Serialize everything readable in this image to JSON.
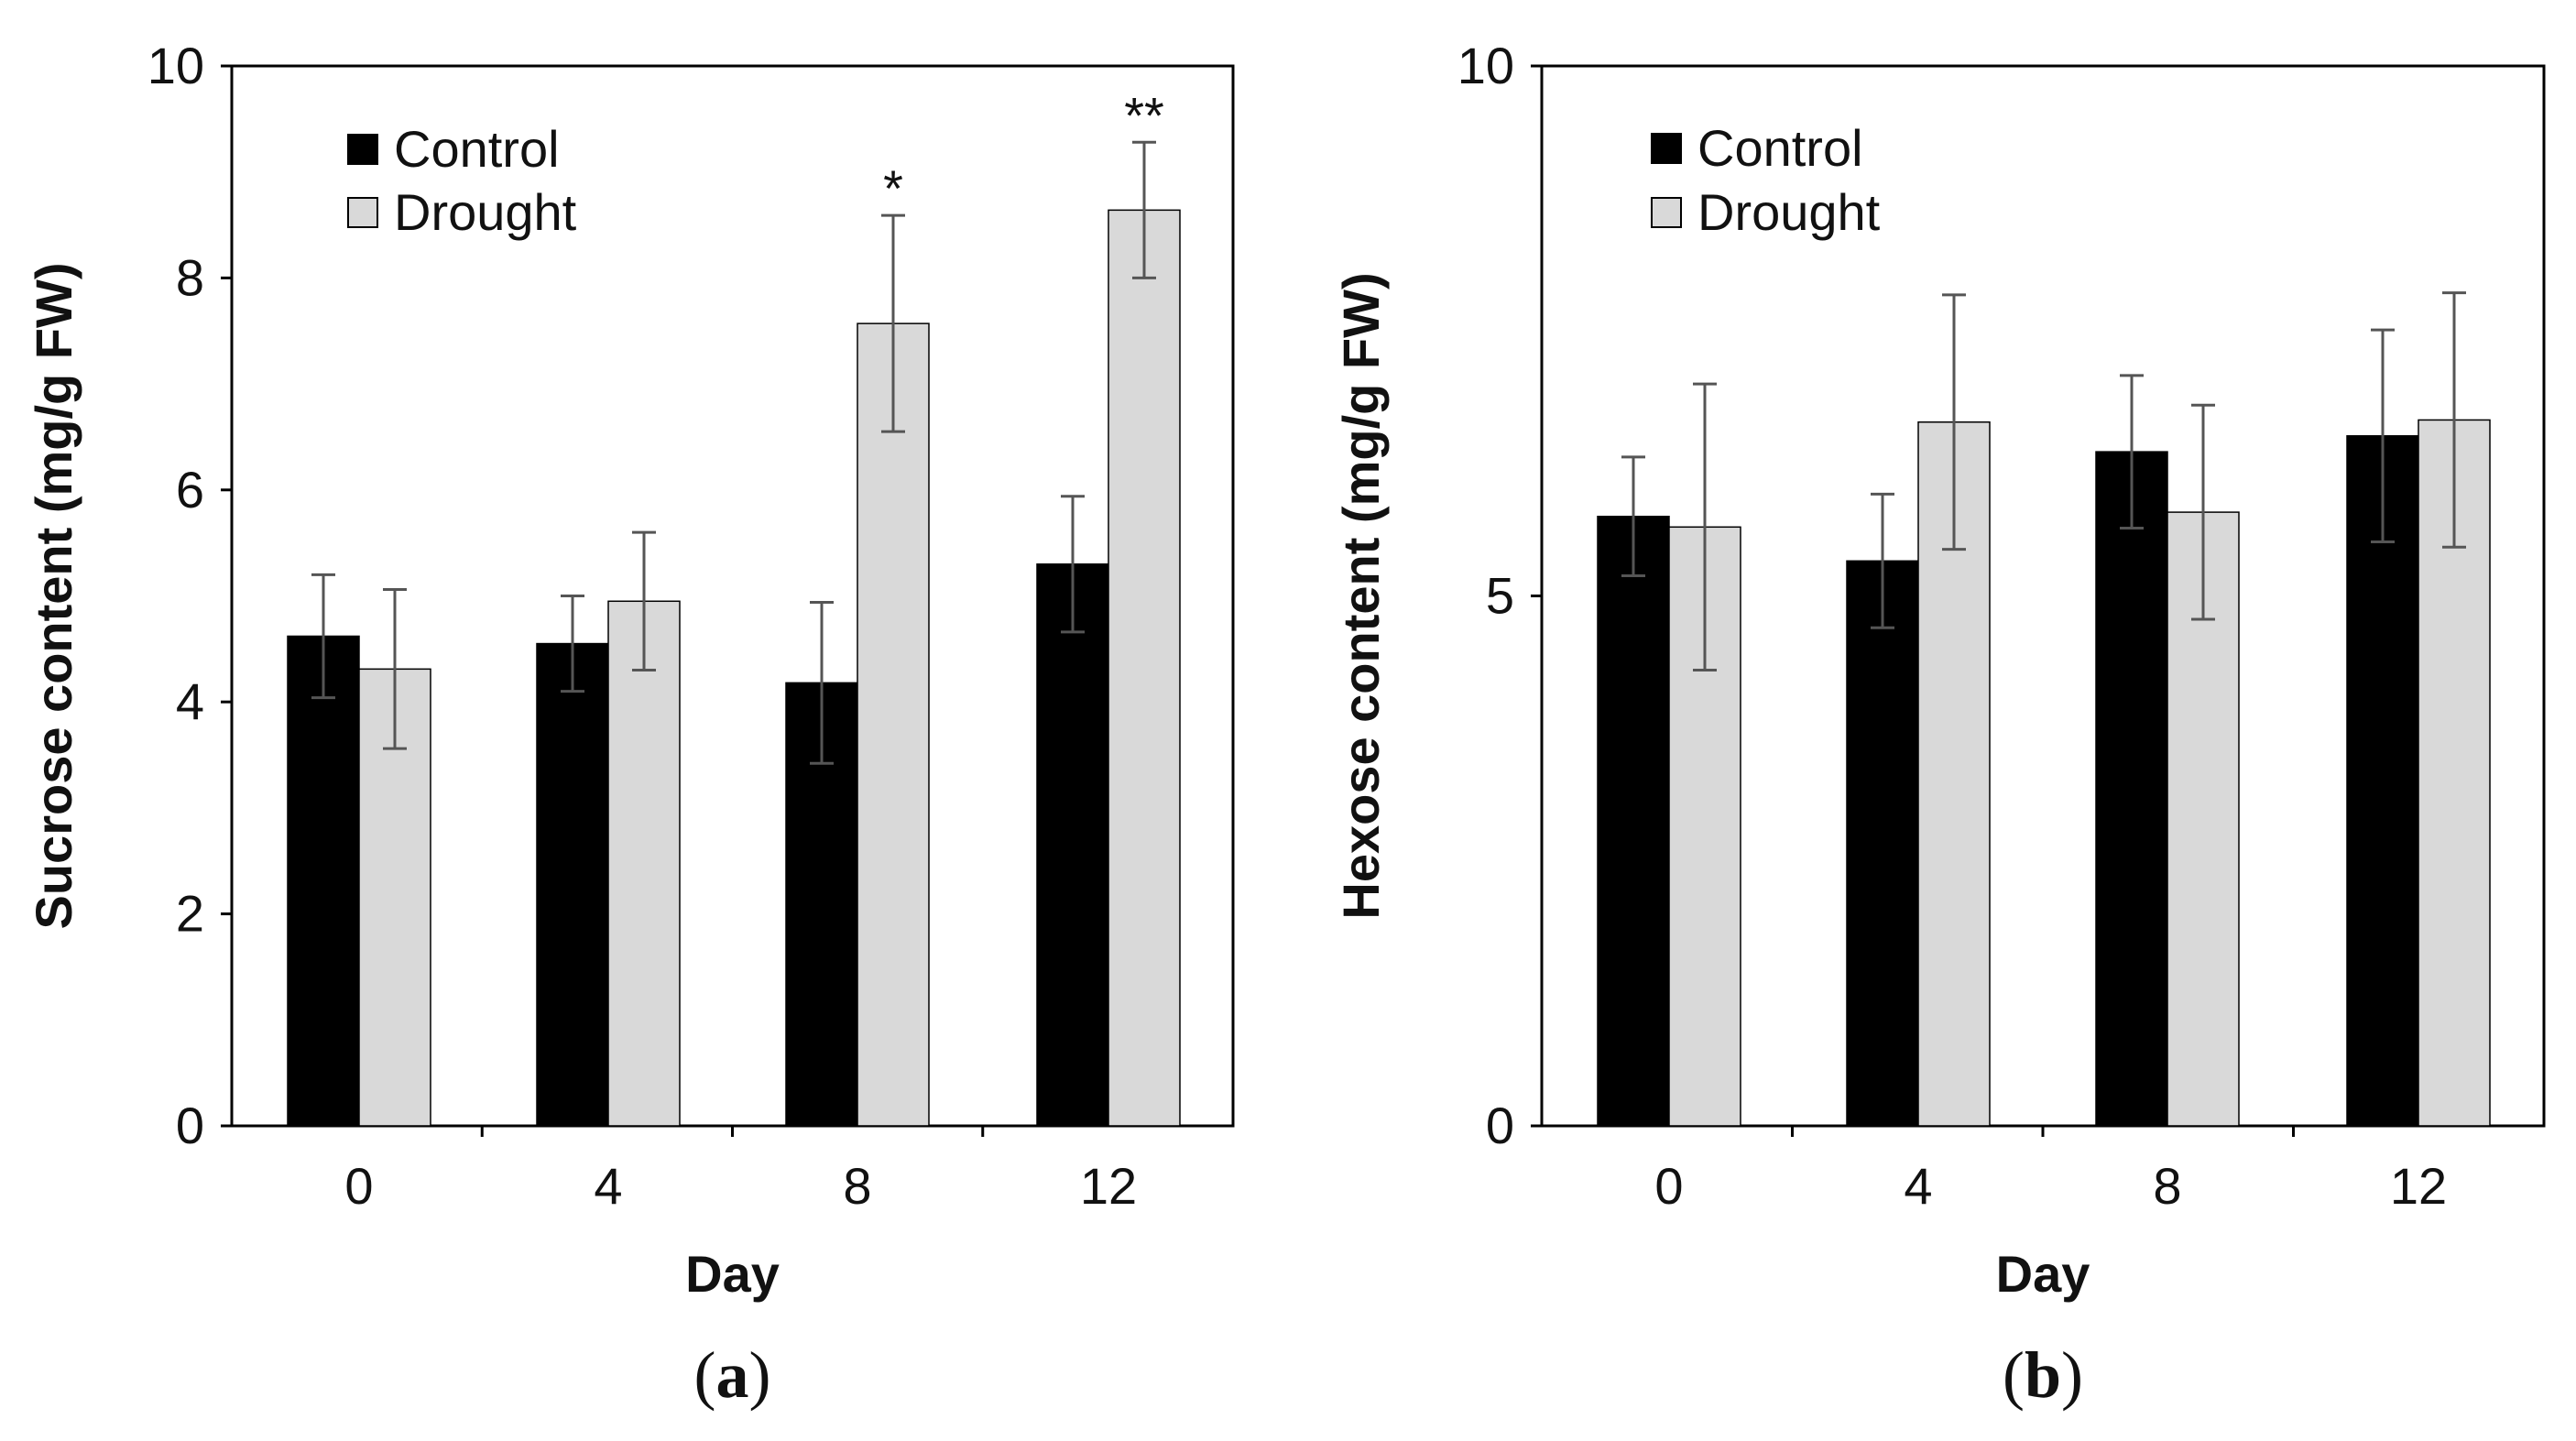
{
  "chart_data": [
    {
      "type": "bar",
      "panel_label": "a",
      "xlabel": "Day",
      "ylabel": "Sucrose content (mg/g FW)",
      "ylim": [
        0,
        10
      ],
      "yticks": [
        0,
        2,
        4,
        6,
        8,
        10
      ],
      "categories": [
        "0",
        "4",
        "8",
        "12"
      ],
      "legend_position": "top-left",
      "series": [
        {
          "name": "Control",
          "color": "#000000",
          "values": [
            4.62,
            4.55,
            4.18,
            5.3
          ],
          "errors": [
            0.58,
            0.45,
            0.76,
            0.64
          ]
        },
        {
          "name": "Drought",
          "color": "#d9d9d9",
          "values": [
            4.31,
            4.95,
            7.57,
            8.64
          ],
          "errors": [
            0.75,
            0.65,
            1.02,
            0.64
          ]
        }
      ],
      "annotations": [
        {
          "category": "8",
          "series": "Drought",
          "text": "*"
        },
        {
          "category": "12",
          "series": "Drought",
          "text": "**"
        }
      ]
    },
    {
      "type": "bar",
      "panel_label": "b",
      "xlabel": "Day",
      "ylabel": "Hexose content (mg/g FW)",
      "ylim": [
        0,
        10
      ],
      "yticks": [
        0,
        5,
        10
      ],
      "categories": [
        "0",
        "4",
        "8",
        "12"
      ],
      "legend_position": "top-left",
      "series": [
        {
          "name": "Control",
          "color": "#000000",
          "values": [
            5.75,
            5.33,
            6.36,
            6.51
          ],
          "errors": [
            0.56,
            0.63,
            0.72,
            1.0
          ]
        },
        {
          "name": "Drought",
          "color": "#d9d9d9",
          "values": [
            5.65,
            6.64,
            5.79,
            6.66
          ],
          "errors": [
            1.35,
            1.2,
            1.01,
            1.2
          ]
        }
      ],
      "annotations": []
    }
  ]
}
